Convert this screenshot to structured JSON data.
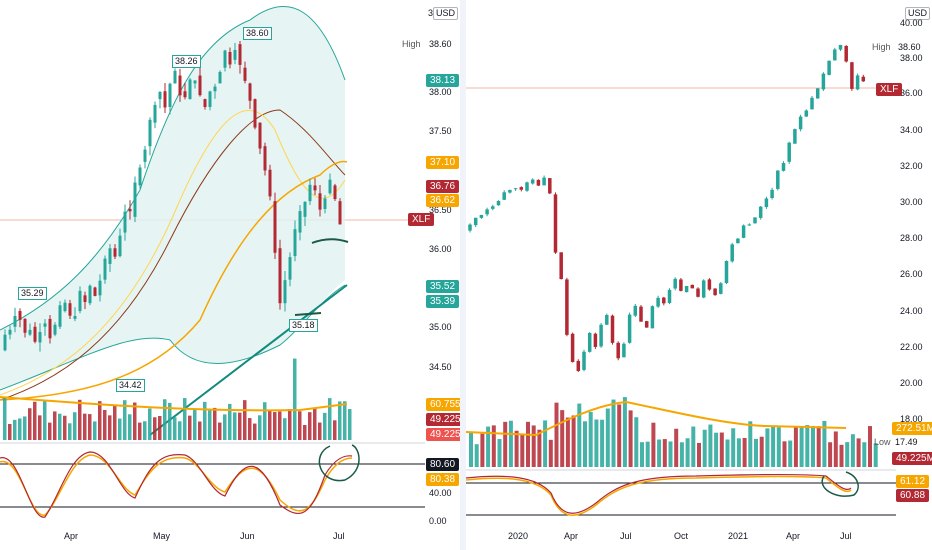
{
  "left": {
    "currency": "USD",
    "high": {
      "label": "High",
      "value": "38.60"
    },
    "price_ticks": [
      "38.00",
      "37.50",
      "36.50",
      "36.00",
      "35.00",
      "34.50"
    ],
    "top_clipped": "3",
    "callouts": [
      "38.26",
      "38.60",
      "35.29",
      "34.42",
      "35.18"
    ],
    "tags": [
      {
        "text": "38.13",
        "color": "#26a69a"
      },
      {
        "text": "37.10",
        "color": "#f7a600"
      },
      {
        "text": "36.76",
        "color": "#b22833"
      },
      {
        "text": "36.62",
        "color": "#f7a600"
      },
      {
        "text": "XLF",
        "color": "#b22833"
      },
      {
        "text": "35.52",
        "color": "#26a69a"
      },
      {
        "text": "35.39",
        "color": "#26a69a"
      },
      {
        "text": "60.755M",
        "color": "#f7a600"
      },
      {
        "text": "49.225M",
        "color": "#b22833"
      },
      {
        "text": "49.225M",
        "color": "#ef5350"
      },
      {
        "text": "80.60",
        "color": "#131722"
      },
      {
        "text": "80.38",
        "color": "#f7a600"
      }
    ],
    "osc_ticks": [
      "40.00",
      "0.00"
    ],
    "months": [
      "Apr",
      "May",
      "Jun",
      "Jul"
    ]
  },
  "right": {
    "currency": "USD",
    "high": {
      "label": "High",
      "value": "38.60"
    },
    "low": {
      "label": "Low",
      "value": "17.49"
    },
    "price_ticks": [
      "40.00",
      "38.00",
      "36.00",
      "34.00",
      "32.00",
      "30.00",
      "28.00",
      "26.00",
      "24.00",
      "22.00",
      "20.00",
      "18.00"
    ],
    "tags": [
      {
        "text": "XLF",
        "color": "#b22833"
      },
      {
        "text": "272.51M",
        "color": "#f7a600"
      },
      {
        "text": "49.225M",
        "color": "#b22833"
      },
      {
        "text": "61.12",
        "color": "#f7a600"
      },
      {
        "text": "60.88",
        "color": "#b22833"
      }
    ],
    "months": [
      "2020",
      "Apr",
      "Jul",
      "Oct",
      "2021",
      "Apr",
      "Jul"
    ]
  },
  "colors": {
    "up": "#26a69a",
    "down": "#b22833",
    "band_fill": "#e0f2f1",
    "ma_orange": "#f7a600",
    "ma_brown": "#8d3b1a",
    "trend_teal": "#138a7e"
  }
}
